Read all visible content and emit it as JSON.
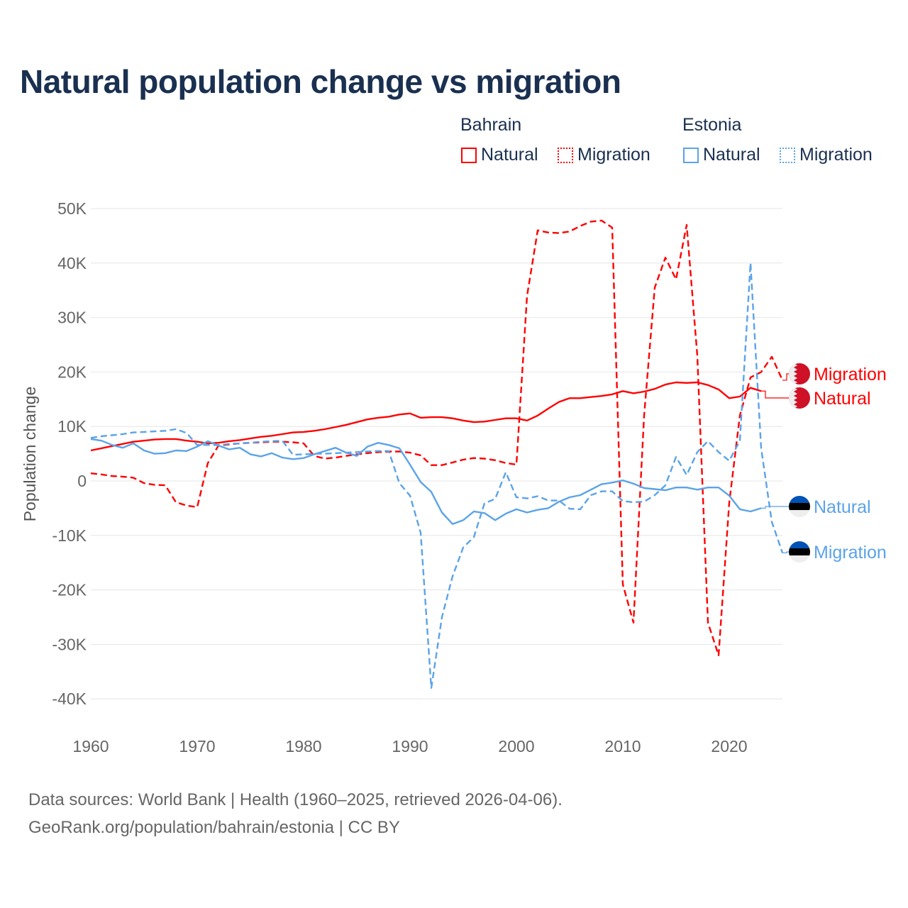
{
  "chart_data": {
    "type": "line",
    "title": "Natural population change vs migration",
    "ylabel": "Population change",
    "xlabel": "",
    "xlim": [
      1960,
      2025
    ],
    "ylim": [
      -40000,
      50000
    ],
    "xticks": [
      1960,
      1970,
      1980,
      1990,
      2000,
      2010,
      2020
    ],
    "xtick_labels": [
      "1960",
      "1970",
      "1980",
      "1990",
      "2000",
      "2010",
      "2020"
    ],
    "yticks": [
      50000,
      40000,
      30000,
      20000,
      10000,
      0,
      -10000,
      -20000,
      -30000,
      -40000
    ],
    "ytick_labels": [
      "50K",
      "40K",
      "30K",
      "20K",
      "10K",
      "0",
      "-10K",
      "-20K",
      "-30K",
      "-40K"
    ],
    "grid": true,
    "legend_position": "top-right",
    "legend_groups": [
      {
        "name": "Bahrain",
        "items": [
          "Natural",
          "Migration"
        ]
      },
      {
        "name": "Estonia",
        "items": [
          "Natural",
          "Migration"
        ]
      }
    ],
    "series": [
      {
        "name": "Natural",
        "country": "Bahrain",
        "color": "#ff0000",
        "dash": false,
        "start": 1960,
        "flag": "bahrain",
        "values": [
          5600,
          6000,
          6400,
          6800,
          7200,
          7400,
          7600,
          7700,
          7700,
          7400,
          7200,
          6900,
          7000,
          7300,
          7500,
          7800,
          8100,
          8300,
          8600,
          8900,
          9000,
          9200,
          9500,
          9900,
          10300,
          10800,
          11300,
          11600,
          11800,
          12200,
          12400,
          11600,
          11700,
          11700,
          11500,
          11100,
          10800,
          10900,
          11200,
          11500,
          11500,
          11100,
          12000,
          13300,
          14500,
          15200,
          15200,
          15400,
          15600,
          15900,
          16500,
          16100,
          16400,
          16900,
          17700,
          18100,
          18000,
          18100,
          17600,
          16800,
          15200,
          15500,
          17100,
          16500
        ]
      },
      {
        "name": "Migration",
        "country": "Bahrain",
        "color": "#ff0000",
        "dash": true,
        "start": 1960,
        "flag": "bahrain",
        "values": [
          1400,
          1200,
          900,
          800,
          600,
          -400,
          -700,
          -800,
          -3900,
          -4500,
          -4800,
          3300,
          6500,
          6700,
          6900,
          7000,
          7100,
          7200,
          7200,
          7100,
          6900,
          4600,
          4100,
          4300,
          4600,
          4900,
          5100,
          5300,
          5400,
          5400,
          5200,
          4700,
          2900,
          2900,
          3400,
          3900,
          4200,
          4100,
          3800,
          3300,
          3000,
          34000,
          46000,
          45600,
          45500,
          45800,
          46800,
          47600,
          47800,
          46500,
          -19000,
          -26000,
          12000,
          35500,
          41000,
          37000,
          47000,
          23000,
          -26000,
          -32000,
          -4000,
          12000,
          19000,
          20000,
          22800,
          18500
        ]
      },
      {
        "name": "Natural",
        "country": "Estonia",
        "color": "#5ba3e8",
        "dash": false,
        "start": 1960,
        "flag": "estonia",
        "values": [
          7700,
          7400,
          6600,
          6100,
          6900,
          5600,
          5000,
          5100,
          5600,
          5500,
          6300,
          7300,
          6500,
          5800,
          6100,
          4900,
          4500,
          5100,
          4300,
          4000,
          4200,
          4900,
          5500,
          6100,
          5200,
          4600,
          6300,
          7000,
          6600,
          6000,
          3000,
          -200,
          -2000,
          -5800,
          -7900,
          -7200,
          -5600,
          -5900,
          -7200,
          -6000,
          -5200,
          -5800,
          -5300,
          -5000,
          -3800,
          -3000,
          -2600,
          -1600,
          -600,
          -300,
          100,
          -500,
          -1300,
          -1500,
          -1700,
          -1200,
          -1200,
          -1600,
          -1200,
          -1200,
          -2700,
          -5200,
          -5600,
          -5000
        ]
      },
      {
        "name": "Migration",
        "country": "Estonia",
        "color": "#5ba3e8",
        "dash": true,
        "start": 1960,
        "flag": "estonia",
        "values": [
          7900,
          8200,
          8400,
          8600,
          8900,
          9000,
          9100,
          9200,
          9500,
          8800,
          6600,
          6600,
          6600,
          6800,
          6900,
          7000,
          7200,
          7300,
          7400,
          4800,
          4900,
          5000,
          5000,
          5100,
          5200,
          5300,
          5400,
          5500,
          5500,
          -400,
          -2700,
          -9500,
          -38000,
          -25000,
          -17500,
          -12200,
          -10300,
          -4100,
          -3300,
          1600,
          -3000,
          -3200,
          -2800,
          -3600,
          -3600,
          -5100,
          -5200,
          -2600,
          -1900,
          -1900,
          -3700,
          -3900,
          -3800,
          -2600,
          -800,
          4400,
          1100,
          5300,
          7300,
          5300,
          3700,
          7400,
          40000,
          6000,
          -7500,
          -13200
        ]
      }
    ]
  },
  "footer": {
    "line1": "Data sources: World Bank | Health (1960–2025, retrieved 2026-04-06).",
    "line2": "GeoRank.org/population/bahrain/estonia | CC BY"
  }
}
